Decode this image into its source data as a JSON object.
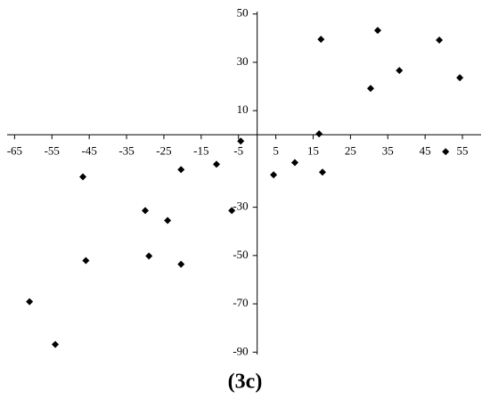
{
  "chart_data": {
    "type": "scatter",
    "title": "(3c)",
    "x": [
      17.1,
      32.3,
      48.8,
      38.1,
      30.4,
      54.3,
      16.6,
      50.5,
      17.5,
      10.1,
      4.4,
      -4.4,
      -10.9,
      -20.4,
      -46.7,
      -30.0,
      -24.0,
      -6.8,
      -45.9,
      -29.0,
      -20.4,
      -61.0,
      -54.1
    ],
    "values": [
      39.5,
      43.2,
      39.2,
      26.6,
      19.2,
      23.6,
      0.4,
      -7.0,
      -15.5,
      -11.5,
      -16.6,
      -2.6,
      -12.2,
      -14.4,
      -17.4,
      -31.4,
      -35.5,
      -31.4,
      -52.1,
      -50.2,
      -53.6,
      -69.1,
      -86.8
    ],
    "color": "#000000",
    "xlim": [
      -67,
      60
    ],
    "xticks": [
      -65,
      -55,
      -45,
      -35,
      -25,
      -15,
      -5,
      5,
      15,
      25,
      35,
      45,
      55
    ],
    "ylim": [
      -91,
      51
    ],
    "yticks": [
      50,
      30,
      10,
      -30,
      -50,
      -70,
      -90
    ]
  }
}
